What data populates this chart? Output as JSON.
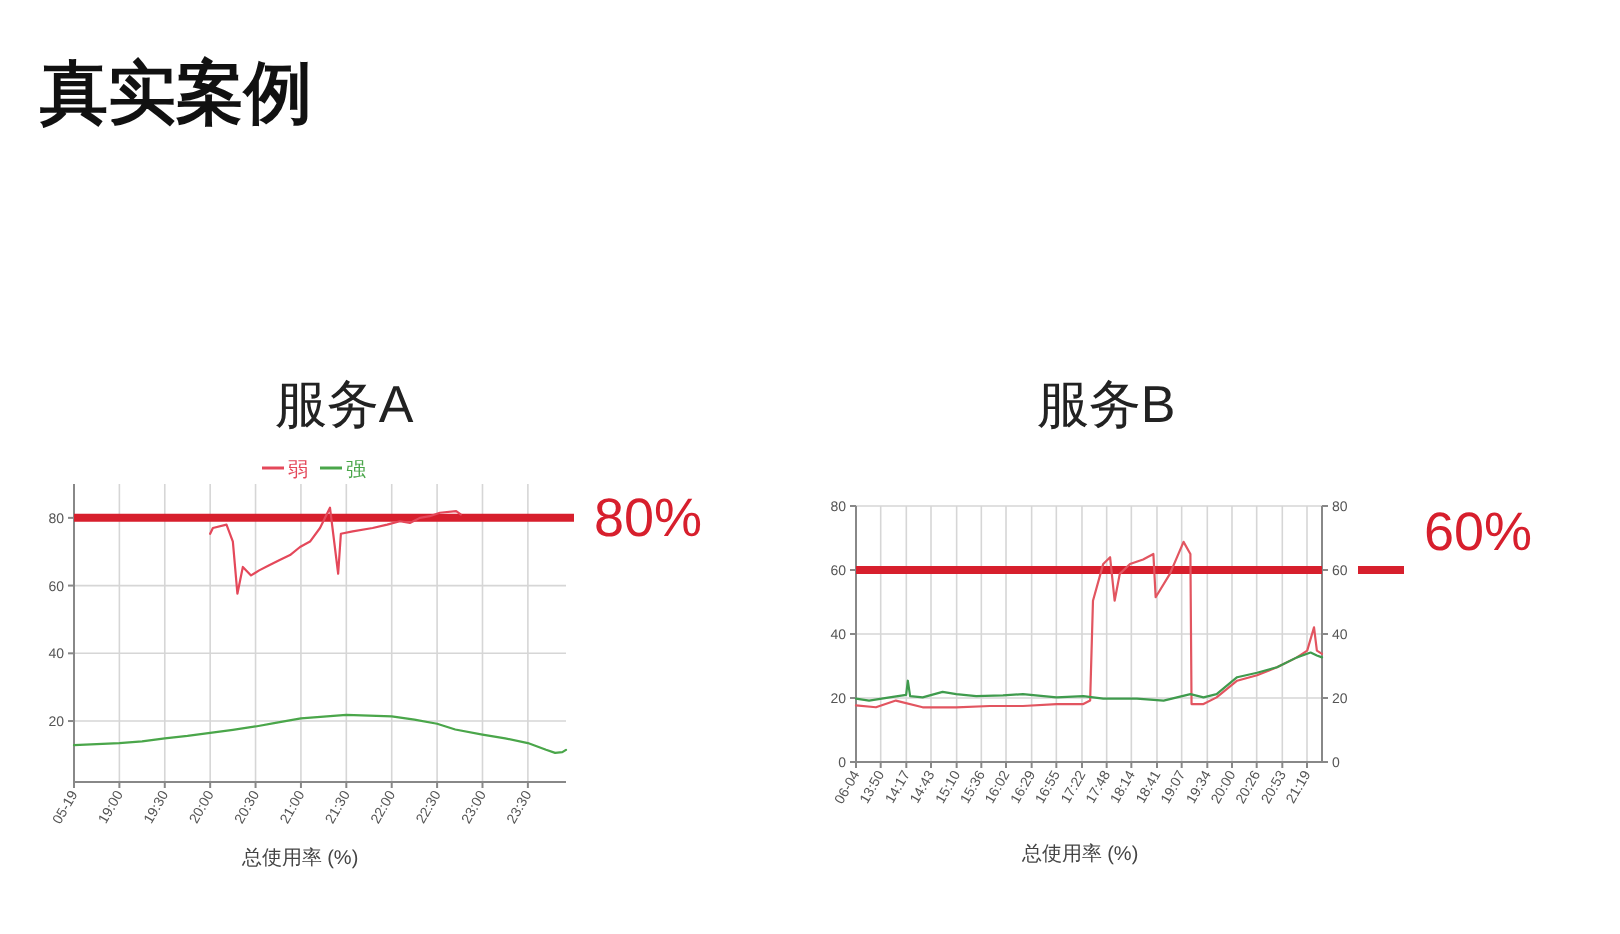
{
  "chart_data": [
    {
      "type": "other",
      "title": "真实案例"
    },
    {
      "type": "line",
      "title": "服务A",
      "xlabel": "总使用率 (%)",
      "xlim": [
        18.5,
        23.92
      ],
      "xticks": [
        {
          "value": 18.5,
          "label": "05-19"
        },
        {
          "value": 19,
          "label": "19:00"
        },
        {
          "value": 19.5,
          "label": "19:30"
        },
        {
          "value": 20,
          "label": "20:00"
        },
        {
          "value": 20.5,
          "label": "20:30"
        },
        {
          "value": 21,
          "label": "21:00"
        },
        {
          "value": 21.5,
          "label": "21:30"
        },
        {
          "value": 22,
          "label": "22:00"
        },
        {
          "value": 22.5,
          "label": "22:30"
        },
        {
          "value": 23,
          "label": "23:00"
        },
        {
          "value": 23.5,
          "label": "23:30"
        }
      ],
      "ylim": [
        2,
        90
      ],
      "yticks": [
        20,
        40,
        60,
        80
      ],
      "grid": true,
      "legend": "top",
      "series": [
        {
          "name": "弱",
          "color": "#e4485a",
          "x": [
            20,
            20.03,
            20.18,
            20.25,
            20.3,
            20.36,
            20.45,
            20.54,
            20.65,
            20.76,
            20.88,
            20.99,
            21.1,
            21.21,
            21.32,
            21.41,
            21.44,
            21.57,
            21.79,
            21.95,
            22.09,
            22.2,
            22.31,
            22.42,
            22.53,
            22.71,
            22.76
          ],
          "values": [
            75.3,
            77,
            78,
            73,
            57.6,
            65.5,
            63,
            64.5,
            66,
            67.5,
            69,
            71.4,
            73,
            77,
            83,
            63.5,
            75.3,
            76,
            77,
            78,
            79,
            78.5,
            80,
            80.5,
            81.5,
            82,
            81
          ]
        },
        {
          "name": "强",
          "color": "#4aa64a",
          "x": [
            18.5,
            18.75,
            19,
            19.25,
            19.5,
            19.75,
            20,
            20.25,
            20.5,
            20.75,
            21,
            21.25,
            21.5,
            21.75,
            22,
            22.25,
            22.5,
            22.7,
            23,
            23.25,
            23.5,
            23.7,
            23.8,
            23.88,
            23.92
          ],
          "values": [
            12.9,
            13.2,
            13.5,
            14,
            14.9,
            15.6,
            16.5,
            17.4,
            18.4,
            19.6,
            20.8,
            21.3,
            21.8,
            21.6,
            21.4,
            20.4,
            19.2,
            17.5,
            16,
            14.9,
            13.5,
            11.5,
            10.6,
            10.8,
            11.5
          ]
        }
      ],
      "ref_lines": [
        {
          "axis": "y",
          "value": 80,
          "label": "80%",
          "color": "#d71f2d"
        }
      ]
    },
    {
      "type": "line",
      "title": "服务B",
      "xlabel": "总使用率 (%)",
      "xlim": [
        13.4,
        21.58
      ],
      "xticks": [
        {
          "value": 13.4,
          "label": "06-04"
        },
        {
          "value": 13.8333,
          "label": "13:50"
        },
        {
          "value": 14.2833,
          "label": "14:17"
        },
        {
          "value": 14.7167,
          "label": "14:43"
        },
        {
          "value": 15.1667,
          "label": "15:10"
        },
        {
          "value": 15.6,
          "label": "15:36"
        },
        {
          "value": 16.0333,
          "label": "16:02"
        },
        {
          "value": 16.4833,
          "label": "16:29"
        },
        {
          "value": 16.9167,
          "label": "16:55"
        },
        {
          "value": 17.3667,
          "label": "17:22"
        },
        {
          "value": 17.8,
          "label": "17:48"
        },
        {
          "value": 18.2333,
          "label": "18:14"
        },
        {
          "value": 18.6833,
          "label": "18:41"
        },
        {
          "value": 19.1167,
          "label": "19:07"
        },
        {
          "value": 19.5667,
          "label": "19:34"
        },
        {
          "value": 20,
          "label": "20:00"
        },
        {
          "value": 20.4333,
          "label": "20:26"
        },
        {
          "value": 20.8833,
          "label": "20:53"
        },
        {
          "value": 21.3167,
          "label": "21:19"
        }
      ],
      "ylim": [
        0,
        80
      ],
      "yticks": [
        0,
        20,
        40,
        60,
        80
      ],
      "y2lim": [
        0,
        80
      ],
      "y2ticks": [
        0,
        20,
        40,
        60,
        80
      ],
      "grid": true,
      "series": [
        {
          "color": "#e25560",
          "x": [
            13.4,
            13.75,
            14.1,
            14.57,
            15.16,
            15.75,
            16.33,
            16.92,
            17.39,
            17.51,
            17.56,
            17.74,
            17.86,
            17.94,
            18.03,
            18.21,
            18.44,
            18.62,
            18.66,
            18.91,
            19.15,
            19.27,
            19.29,
            19.5,
            19.73,
            20.09,
            20.44,
            20.79,
            21.14,
            21.32,
            21.44,
            21.49,
            21.58
          ],
          "values": [
            17.7,
            17.1,
            19.2,
            17.1,
            17.1,
            17.5,
            17.5,
            18.1,
            18.1,
            19.2,
            50.4,
            61.9,
            64,
            50.4,
            58.8,
            61.9,
            63.3,
            65,
            51.5,
            58.8,
            68.8,
            65,
            18.1,
            18.1,
            20.2,
            25.4,
            27.1,
            29.6,
            32.7,
            34.8,
            42.1,
            34.8,
            33.8
          ]
        },
        {
          "color": "#3f9b4d",
          "x": [
            13.4,
            13.63,
            13.99,
            14.28,
            14.31,
            14.35,
            14.57,
            14.92,
            15.16,
            15.51,
            15.98,
            16.33,
            16.92,
            17.39,
            17.74,
            18.33,
            18.8,
            19.27,
            19.5,
            19.73,
            20.09,
            20.44,
            20.79,
            21.14,
            21.38,
            21.49,
            21.58
          ],
          "values": [
            19.8,
            19.2,
            20.2,
            21,
            25.4,
            20.6,
            20.2,
            21.9,
            21.2,
            20.6,
            20.8,
            21.2,
            20.2,
            20.6,
            19.8,
            19.8,
            19.2,
            21.2,
            20.2,
            21.2,
            26.5,
            27.9,
            29.6,
            32.7,
            34.2,
            33.3,
            32.7
          ]
        }
      ],
      "ref_lines": [
        {
          "axis": "y",
          "value": 60,
          "label": "60%",
          "color": "#d71f2d"
        }
      ]
    }
  ]
}
